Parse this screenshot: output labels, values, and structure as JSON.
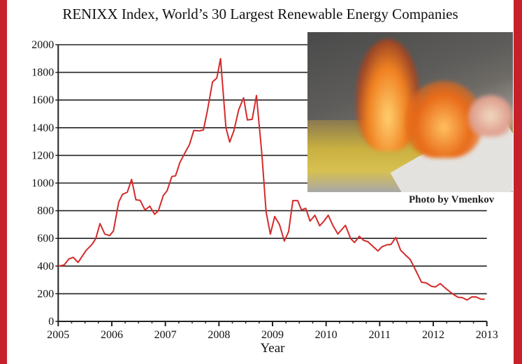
{
  "chart_data": {
    "type": "line",
    "title": "RENIXX Index, World’s 30 Largest Renewable Energy Companies",
    "xlabel": "Year",
    "ylabel": "",
    "xlim": [
      2005,
      2013
    ],
    "ylim": [
      0,
      2000
    ],
    "x_ticks": [
      "2005",
      "2006",
      "2007",
      "2008",
      "2009",
      "2010",
      "2011",
      "2012",
      "2013"
    ],
    "y_ticks": [
      "0",
      "200",
      "400",
      "600",
      "800",
      "1000",
      "1200",
      "1400",
      "1600",
      "1800",
      "2000"
    ],
    "grid": "horizontal",
    "line_color": "#d42a2a",
    "series": [
      {
        "x": [
          2005.0,
          2005.11,
          2005.2,
          2005.28,
          2005.37,
          2005.52,
          2005.63,
          2005.7,
          2005.78,
          2005.87,
          2005.96,
          2006.03,
          2006.13,
          2006.2,
          2006.29,
          2006.37,
          2006.45,
          2006.53,
          2006.62,
          2006.71,
          2006.8,
          2006.87,
          2006.96,
          2007.03,
          2007.12,
          2007.19,
          2007.27,
          2007.36,
          2007.45,
          2007.53,
          2007.63,
          2007.71,
          2007.78,
          2007.88,
          2007.96,
          2008.03,
          2008.13,
          2008.2,
          2008.28,
          2008.37,
          2008.46,
          2008.53,
          2008.62,
          2008.7,
          2008.8,
          2008.88,
          2008.96,
          2009.04,
          2009.13,
          2009.22,
          2009.3,
          2009.38,
          2009.47,
          2009.54,
          2009.62,
          2009.7,
          2009.79,
          2009.88,
          2009.96,
          2010.04,
          2010.13,
          2010.22,
          2010.36,
          2010.46,
          2010.53,
          2010.62,
          2010.7,
          2010.78,
          2010.87,
          2010.97,
          2011.04,
          2011.13,
          2011.21,
          2011.3,
          2011.39,
          2011.48,
          2011.57,
          2011.67,
          2011.78,
          2011.87,
          2011.97,
          2012.04,
          2012.13,
          2012.24,
          2012.35,
          2012.46,
          2012.54,
          2012.63,
          2012.72,
          2012.8,
          2012.89,
          2012.96
        ],
        "values": [
          400,
          407,
          451,
          463,
          426,
          513,
          556,
          598,
          707,
          631,
          620,
          653,
          862,
          918,
          934,
          1027,
          879,
          875,
          805,
          833,
          774,
          800,
          909,
          943,
          1047,
          1052,
          1148,
          1215,
          1279,
          1380,
          1377,
          1384,
          1515,
          1731,
          1759,
          1899,
          1401,
          1296,
          1380,
          1532,
          1616,
          1456,
          1461,
          1633,
          1212,
          791,
          631,
          758,
          699,
          581,
          649,
          873,
          873,
          805,
          817,
          725,
          767,
          691,
          725,
          767,
          691,
          632,
          694,
          598,
          570,
          615,
          586,
          576,
          543,
          509,
          539,
          553,
          556,
          607,
          514,
          480,
          447,
          371,
          283,
          278,
          253,
          249,
          273,
          236,
          202,
          174,
          172,
          155,
          177,
          177,
          160,
          160
        ]
      }
    ]
  },
  "photo": {
    "caption": "Photo by Vmenkov"
  },
  "colors": {
    "frame": "#c8202a",
    "line": "#d42a2a"
  }
}
